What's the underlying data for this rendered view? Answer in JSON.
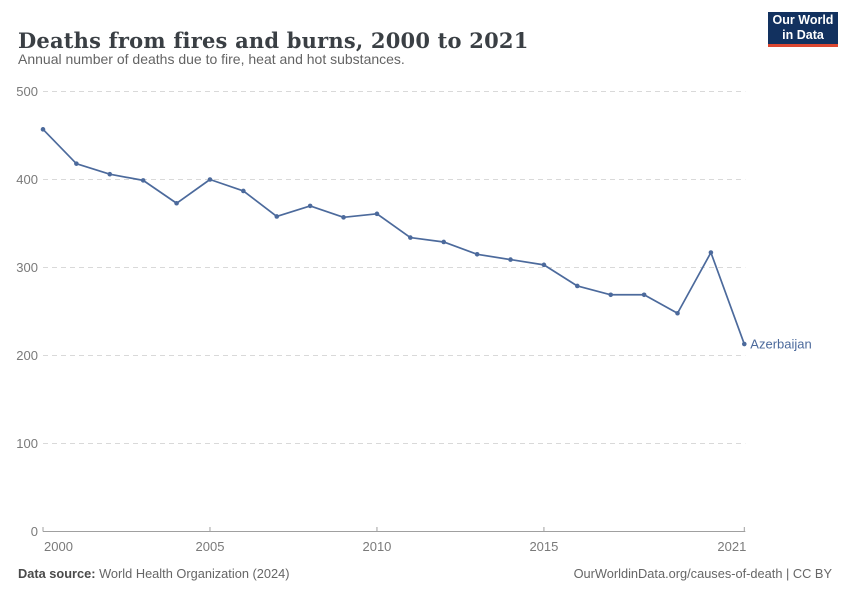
{
  "header": {
    "title": "Deaths from fires and burns, 2000 to 2021",
    "subtitle": "Annual number of deaths due to fire, heat and hot substances.",
    "logo": {
      "line1": "Our World",
      "line2": "in Data",
      "bg_color": "#12315f",
      "accent_color": "#dc4731"
    }
  },
  "chart_data": {
    "type": "line",
    "title": "Deaths from fires and burns, 2000 to 2021",
    "subtitle": "Annual number of deaths due to fire, heat and hot substances.",
    "x": [
      2000,
      2001,
      2002,
      2003,
      2004,
      2005,
      2006,
      2007,
      2008,
      2009,
      2010,
      2011,
      2012,
      2013,
      2014,
      2015,
      2016,
      2017,
      2018,
      2019,
      2020,
      2021
    ],
    "series": [
      {
        "name": "Azerbaijan",
        "color": "#4C6A9C",
        "values": [
          457,
          418,
          406,
          399,
          373,
          400,
          387,
          358,
          370,
          357,
          361,
          334,
          329,
          315,
          309,
          303,
          279,
          269,
          269,
          248,
          317,
          213
        ]
      }
    ],
    "xlabel": "",
    "ylabel": "",
    "xlim": [
      2000,
      2021
    ],
    "ylim": [
      0,
      500
    ],
    "yticks": [
      0,
      100,
      200,
      300,
      400,
      500
    ],
    "xticks": [
      2000,
      2005,
      2010,
      2015,
      2021
    ],
    "grid": "horizontal-dashed",
    "legend": "end-of-line-label",
    "colors": {
      "line": "#4C6A9C",
      "gridline": "#d9d9d9",
      "axis": "#a0a0a0",
      "tick_text": "#7a7a7a"
    }
  },
  "footer": {
    "datasource_label": "Data source:",
    "datasource_value": " World Health Organization (2024)",
    "link": "OurWorldinData.org/causes-of-death | CC BY"
  }
}
